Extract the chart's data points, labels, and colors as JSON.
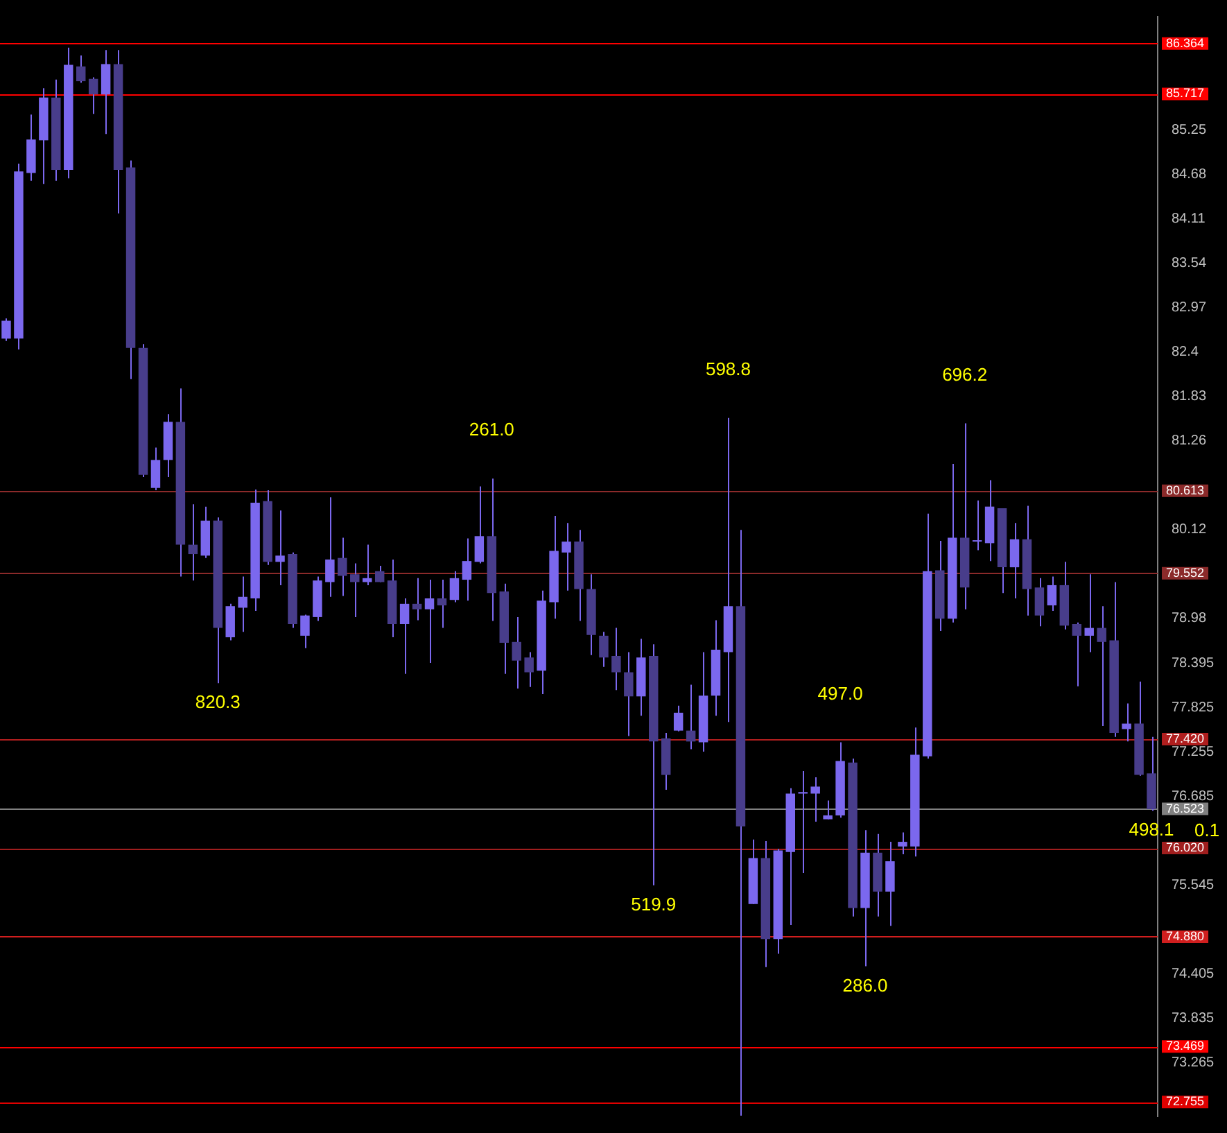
{
  "chart_data": {
    "type": "candlestick",
    "categories": [
      null,
      null,
      null,
      null,
      null,
      null,
      null,
      null,
      null,
      null,
      null,
      null,
      null,
      null,
      null,
      null,
      null,
      null,
      null,
      null,
      null,
      null,
      null,
      null,
      null,
      null,
      null,
      null,
      null,
      null,
      null,
      null,
      null,
      null,
      null,
      null,
      null,
      null,
      null,
      null,
      null,
      null,
      null,
      null,
      null,
      null,
      null,
      null,
      null,
      null,
      null,
      null,
      null,
      null,
      null,
      null,
      null,
      null,
      null,
      null,
      null,
      null,
      null,
      null,
      null,
      null,
      null,
      null,
      null,
      null,
      null,
      null,
      null,
      null,
      null,
      null,
      null,
      null,
      null,
      null,
      null,
      null,
      null,
      null,
      null,
      null,
      null,
      null,
      null,
      null,
      null,
      null,
      null
    ],
    "ohlc": [
      [
        82.57,
        82.83,
        82.54,
        82.8
      ],
      [
        82.57,
        84.82,
        82.43,
        84.72
      ],
      [
        84.7,
        85.45,
        84.6,
        85.13
      ],
      [
        85.12,
        85.79,
        84.56,
        85.67
      ],
      [
        85.67,
        85.9,
        84.6,
        84.74
      ],
      [
        84.74,
        86.31,
        84.63,
        86.09
      ],
      [
        86.07,
        86.21,
        85.86,
        85.88
      ],
      [
        85.91,
        85.93,
        85.46,
        85.71
      ],
      [
        85.71,
        86.28,
        85.2,
        86.1
      ],
      [
        86.1,
        86.28,
        84.18,
        84.74
      ],
      [
        84.77,
        84.86,
        82.05,
        82.45
      ],
      [
        82.45,
        82.5,
        80.79,
        80.82
      ],
      [
        80.65,
        81.17,
        80.62,
        81.01
      ],
      [
        81.01,
        81.6,
        80.79,
        81.5
      ],
      [
        81.5,
        81.93,
        79.51,
        79.92
      ],
      [
        79.92,
        80.44,
        79.46,
        79.8
      ],
      [
        79.78,
        80.41,
        79.75,
        80.23
      ],
      [
        80.23,
        80.27,
        78.14,
        78.85
      ],
      [
        78.73,
        79.16,
        78.69,
        79.13
      ],
      [
        79.11,
        79.51,
        78.8,
        79.25
      ],
      [
        79.23,
        80.63,
        79.07,
        80.46
      ],
      [
        80.48,
        80.62,
        79.66,
        79.7
      ],
      [
        79.7,
        80.36,
        79.4,
        79.78
      ],
      [
        79.8,
        79.82,
        78.85,
        78.9
      ],
      [
        78.75,
        79.02,
        78.59,
        79.01
      ],
      [
        78.99,
        79.51,
        78.94,
        79.46
      ],
      [
        79.44,
        80.53,
        79.25,
        79.73
      ],
      [
        79.75,
        80.01,
        79.26,
        79.52
      ],
      [
        79.54,
        79.68,
        78.99,
        79.44
      ],
      [
        79.44,
        79.92,
        79.4,
        79.49
      ],
      [
        79.58,
        79.65,
        79.44,
        79.44
      ],
      [
        79.46,
        79.73,
        78.73,
        78.9
      ],
      [
        78.9,
        79.23,
        78.26,
        79.16
      ],
      [
        79.16,
        79.49,
        78.95,
        79.09
      ],
      [
        79.09,
        79.47,
        78.4,
        79.23
      ],
      [
        79.23,
        79.47,
        78.85,
        79.14
      ],
      [
        79.21,
        79.58,
        79.18,
        79.49
      ],
      [
        79.47,
        80.0,
        79.2,
        79.71
      ],
      [
        79.7,
        80.67,
        79.68,
        80.03
      ],
      [
        80.03,
        80.77,
        78.94,
        79.3
      ],
      [
        79.32,
        79.42,
        78.26,
        78.66
      ],
      [
        78.67,
        78.99,
        78.07,
        78.43
      ],
      [
        78.47,
        78.54,
        78.09,
        78.28
      ],
      [
        78.3,
        79.33,
        78.0,
        79.2
      ],
      [
        79.18,
        80.29,
        78.97,
        79.84
      ],
      [
        79.82,
        80.2,
        79.33,
        79.96
      ],
      [
        79.96,
        80.11,
        78.94,
        79.35
      ],
      [
        79.35,
        79.54,
        78.5,
        78.76
      ],
      [
        78.75,
        78.8,
        78.35,
        78.47
      ],
      [
        78.49,
        78.85,
        78.05,
        78.28
      ],
      [
        78.28,
        78.54,
        77.46,
        77.97
      ],
      [
        77.97,
        78.71,
        77.72,
        78.47
      ],
      [
        78.49,
        78.64,
        75.54,
        77.39
      ],
      [
        77.43,
        77.5,
        76.77,
        76.96
      ],
      [
        77.53,
        77.85,
        77.52,
        77.76
      ],
      [
        77.53,
        78.12,
        77.29,
        77.39
      ],
      [
        77.38,
        78.54,
        77.26,
        77.98
      ],
      [
        77.98,
        78.95,
        77.72,
        78.57
      ],
      [
        78.54,
        81.55,
        77.64,
        79.13
      ],
      [
        79.13,
        80.11,
        72.58,
        76.3
      ],
      [
        75.3,
        76.13,
        75.3,
        75.89
      ],
      [
        75.89,
        76.11,
        74.49,
        74.85
      ],
      [
        74.85,
        76.01,
        74.66,
        75.99
      ],
      [
        75.97,
        76.79,
        75.03,
        76.72
      ],
      [
        76.72,
        77.01,
        75.7,
        76.74
      ],
      [
        76.72,
        76.93,
        76.36,
        76.81
      ],
      [
        76.39,
        76.63,
        76.39,
        76.44
      ],
      [
        76.44,
        77.38,
        76.41,
        77.14
      ],
      [
        77.12,
        77.17,
        75.14,
        75.25
      ],
      [
        75.25,
        76.25,
        74.5,
        75.96
      ],
      [
        75.96,
        76.2,
        75.14,
        75.46
      ],
      [
        75.46,
        76.1,
        75.02,
        75.85
      ],
      [
        76.04,
        76.22,
        75.94,
        76.1
      ],
      [
        76.04,
        77.57,
        75.91,
        77.22
      ],
      [
        77.2,
        80.32,
        77.17,
        79.58
      ],
      [
        79.59,
        79.97,
        78.81,
        78.97
      ],
      [
        78.97,
        80.96,
        78.92,
        80.01
      ],
      [
        80.01,
        81.48,
        79.09,
        79.37
      ],
      [
        79.96,
        80.49,
        79.85,
        79.96
      ],
      [
        79.94,
        80.75,
        79.71,
        80.41
      ],
      [
        80.39,
        80.39,
        79.3,
        79.63
      ],
      [
        79.63,
        80.2,
        79.23,
        79.99
      ],
      [
        79.99,
        80.42,
        79.01,
        79.35
      ],
      [
        79.37,
        79.49,
        78.87,
        79.01
      ],
      [
        79.14,
        79.51,
        79.07,
        79.4
      ],
      [
        79.4,
        79.7,
        78.83,
        78.88
      ],
      [
        78.9,
        78.92,
        78.1,
        78.75
      ],
      [
        78.75,
        79.54,
        78.54,
        78.85
      ],
      [
        78.85,
        79.13,
        77.59,
        78.67
      ],
      [
        78.69,
        79.44,
        77.45,
        77.5
      ],
      [
        77.55,
        77.88,
        77.39,
        77.62
      ],
      [
        77.62,
        78.16,
        76.95,
        76.96
      ],
      [
        76.98,
        77.45,
        76.5,
        76.52
      ]
    ],
    "color": "#7b68ee",
    "colors": [
      "#7b68ee",
      "#7b68ee",
      "#7b68ee",
      "#7b68ee",
      "#483d8b",
      "#7b68ee",
      "#483d8b",
      "#483d8b",
      "#7b68ee",
      "#483d8b",
      "#483d8b",
      "#483d8b",
      "#7b68ee",
      "#7b68ee",
      "#483d8b",
      "#483d8b",
      "#7b68ee",
      "#483d8b",
      "#7b68ee",
      "#7b68ee",
      "#7b68ee",
      "#483d8b",
      "#7b68ee",
      "#483d8b",
      "#7b68ee",
      "#7b68ee",
      "#7b68ee",
      "#483d8b",
      "#483d8b",
      "#7b68ee",
      "#483d8b",
      "#483d8b",
      "#7b68ee",
      "#483d8b",
      "#7b68ee",
      "#483d8b",
      "#7b68ee",
      "#7b68ee",
      "#7b68ee",
      "#483d8b",
      "#483d8b",
      "#483d8b",
      "#483d8b",
      "#7b68ee",
      "#7b68ee",
      "#7b68ee",
      "#483d8b",
      "#483d8b",
      "#483d8b",
      "#483d8b",
      "#483d8b",
      "#7b68ee",
      "#483d8b",
      "#483d8b",
      "#7b68ee",
      "#483d8b",
      "#7b68ee",
      "#7b68ee",
      "#7b68ee",
      "#483d8b",
      "#7b68ee",
      "#483d8b",
      "#7b68ee",
      "#7b68ee",
      "#7b68ee",
      "#7b68ee",
      "#7b68ee",
      "#7b68ee",
      "#483d8b",
      "#7b68ee",
      "#483d8b",
      "#7b68ee",
      "#7b68ee",
      "#7b68ee",
      "#7b68ee",
      "#483d8b",
      "#7b68ee",
      "#483d8b",
      "#7b68ee",
      "#7b68ee",
      "#483d8b",
      "#7b68ee",
      "#483d8b",
      "#483d8b",
      "#7b68ee",
      "#483d8b",
      "#483d8b",
      "#7b68ee",
      "#483d8b",
      "#483d8b",
      "#7b68ee",
      "#483d8b",
      "#483d8b"
    ],
    "ylim": [
      72.57,
      86.71
    ],
    "yticks": [
      73.265,
      73.835,
      74.405,
      75.545,
      76.685,
      77.255,
      77.825,
      78.395,
      78.98,
      80.12,
      81.26,
      81.83,
      82.4,
      82.97,
      83.54,
      84.11,
      84.68,
      85.25
    ],
    "tick_labels": "y",
    "legend": false,
    "ref_lines": [
      {
        "axis": "y",
        "value": 86.364,
        "label": "86.364",
        "color": "#ff0000"
      },
      {
        "axis": "y",
        "value": 85.717,
        "label": "85.717",
        "color": "#ff0000"
      },
      {
        "axis": "y",
        "value": 80.613,
        "label": "80.613",
        "color": "#8b2a2a"
      },
      {
        "axis": "y",
        "value": 79.552,
        "label": "79.552",
        "color": "#8b2a2a"
      },
      {
        "axis": "y",
        "value": 77.42,
        "label": "77.420",
        "color": "#b01e1e"
      },
      {
        "axis": "y",
        "value": 76.523,
        "label": "76.523",
        "color": "#808080"
      },
      {
        "axis": "y",
        "value": 76.02,
        "label": "76.020",
        "color": "#a01e1e"
      },
      {
        "axis": "y",
        "value": 74.88,
        "label": "74.880",
        "color": "#d01e1e"
      },
      {
        "axis": "y",
        "value": 73.469,
        "label": "73.469",
        "color": "#ff0000"
      },
      {
        "axis": "y",
        "value": 72.755,
        "label": "72.755",
        "color": "#e00000"
      }
    ],
    "annotations": [
      {
        "text": "820.3",
        "y": 78.14
      },
      {
        "text": "261.0",
        "y": 80.77
      },
      {
        "text": "598.8",
        "y": 81.55
      },
      {
        "text": "519.9",
        "y": 75.54
      },
      {
        "text": "497.0",
        "y": 77.38
      },
      {
        "text": "286.0",
        "y": 74.5
      },
      {
        "text": "696.2",
        "y": 81.48
      },
      {
        "text": "498.1",
        "y": 76.5
      },
      "0.1"
    ]
  }
}
